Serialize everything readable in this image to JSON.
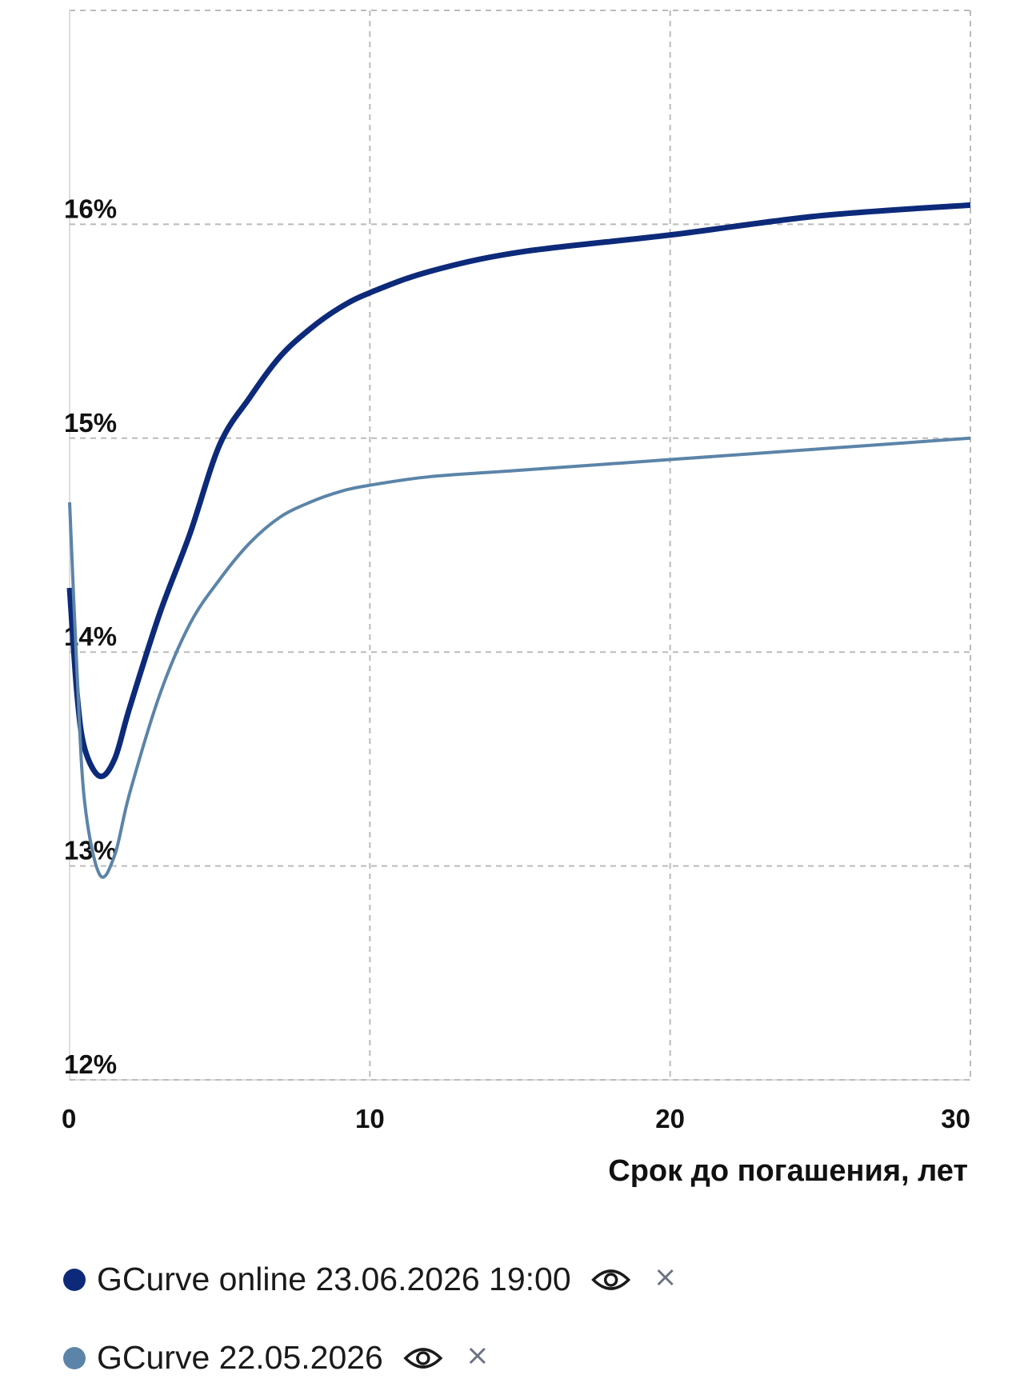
{
  "chart_data": {
    "type": "line",
    "x_label": "Срок до погашения, лет",
    "x": [
      0,
      0.25,
      0.5,
      1,
      1.5,
      2,
      3,
      4,
      5,
      6,
      7,
      8,
      9,
      10,
      12,
      15,
      20,
      25,
      30
    ],
    "series": [
      {
        "name": "GCurve online 23.06.2026 19:00",
        "color": "#0d2a7a",
        "values": [
          14.3,
          13.8,
          13.55,
          13.42,
          13.5,
          13.74,
          14.18,
          14.55,
          14.97,
          15.19,
          15.38,
          15.51,
          15.61,
          15.68,
          15.78,
          15.87,
          15.95,
          16.04,
          16.09
        ]
      },
      {
        "name": "GCurve 22.05.2026",
        "color": "#5b84a8",
        "values": [
          14.7,
          13.9,
          13.3,
          12.96,
          13.05,
          13.34,
          13.8,
          14.13,
          14.34,
          14.51,
          14.63,
          14.7,
          14.75,
          14.78,
          14.82,
          14.85,
          14.9,
          14.95,
          15.0
        ]
      }
    ],
    "xlim": [
      0,
      30
    ],
    "xticks": [
      0,
      10,
      20,
      30
    ],
    "ylim": [
      12,
      17
    ],
    "yticks": [
      {
        "value": 12,
        "label": "12%"
      },
      {
        "value": 13,
        "label": "13%"
      },
      {
        "value": 14,
        "label": "14%"
      },
      {
        "value": 15,
        "label": "15%"
      },
      {
        "value": 16,
        "label": "16%"
      }
    ],
    "grid": true
  }
}
